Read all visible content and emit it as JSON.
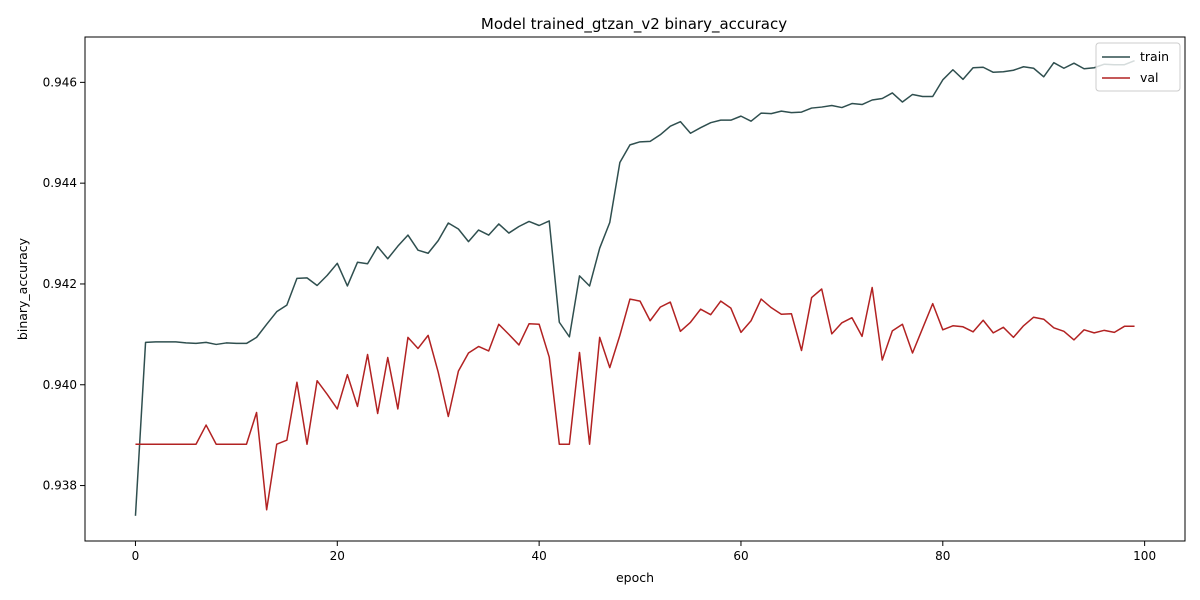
{
  "chart_data": {
    "type": "line",
    "title": "Model trained_gtzan_v2 binary_accuracy",
    "xlabel": "epoch",
    "ylabel": "binary_accuracy",
    "xlim": [
      -5,
      104
    ],
    "ylim": [
      0.9369,
      0.9469
    ],
    "xticks": [
      0,
      20,
      40,
      60,
      80,
      100
    ],
    "yticks": [
      0.938,
      0.94,
      0.942,
      0.944,
      0.946
    ],
    "xtick_labels": [
      "0",
      "20",
      "40",
      "60",
      "80",
      "100"
    ],
    "ytick_labels": [
      "0.938",
      "0.940",
      "0.942",
      "0.944",
      "0.946"
    ],
    "grid": false,
    "legend_position": "top-right",
    "series": [
      {
        "name": "train",
        "color": "#2f4f4f",
        "values": [
          0.9374,
          0.94084,
          0.94085,
          0.94085,
          0.94085,
          0.94083,
          0.94082,
          0.94084,
          0.9408,
          0.94083,
          0.94082,
          0.94082,
          0.94094,
          0.9412,
          0.94145,
          0.94158,
          0.94211,
          0.94212,
          0.94197,
          0.94217,
          0.94241,
          0.94196,
          0.94243,
          0.9424,
          0.94274,
          0.9425,
          0.94275,
          0.94297,
          0.94267,
          0.94261,
          0.94286,
          0.94321,
          0.94309,
          0.94284,
          0.94307,
          0.94297,
          0.94319,
          0.94301,
          0.94314,
          0.94324,
          0.94316,
          0.94325,
          0.94124,
          0.94095,
          0.94216,
          0.94196,
          0.94271,
          0.94322,
          0.94441,
          0.94476,
          0.94482,
          0.94483,
          0.94496,
          0.94513,
          0.94522,
          0.94499,
          0.9451,
          0.9452,
          0.94525,
          0.94525,
          0.94533,
          0.94523,
          0.94539,
          0.94538,
          0.94543,
          0.9454,
          0.94541,
          0.94549,
          0.94551,
          0.94554,
          0.9455,
          0.94558,
          0.94556,
          0.94565,
          0.94568,
          0.94579,
          0.94561,
          0.94576,
          0.94572,
          0.94572,
          0.94605,
          0.94625,
          0.94606,
          0.94629,
          0.9463,
          0.9462,
          0.94621,
          0.94624,
          0.94631,
          0.94628,
          0.94611,
          0.94639,
          0.94628,
          0.94638,
          0.94627,
          0.94629,
          0.94636,
          0.94635,
          0.94635,
          0.94643
        ]
      },
      {
        "name": "val",
        "color": "#b22222",
        "values": [
          0.93882,
          0.93882,
          0.93882,
          0.93882,
          0.93882,
          0.93882,
          0.93882,
          0.9392,
          0.93882,
          0.93882,
          0.93882,
          0.93882,
          0.93945,
          0.93752,
          0.93882,
          0.9389,
          0.94005,
          0.93882,
          0.94008,
          0.93981,
          0.93952,
          0.9402,
          0.93957,
          0.9406,
          0.93943,
          0.94054,
          0.93952,
          0.94094,
          0.94072,
          0.94098,
          0.94025,
          0.93937,
          0.94027,
          0.94063,
          0.94076,
          0.94067,
          0.9412,
          0.941,
          0.94079,
          0.94121,
          0.9412,
          0.94055,
          0.93882,
          0.93882,
          0.94064,
          0.93882,
          0.94094,
          0.94034,
          0.94098,
          0.9417,
          0.94166,
          0.94127,
          0.94154,
          0.94164,
          0.94106,
          0.94124,
          0.9415,
          0.94139,
          0.94166,
          0.94152,
          0.94104,
          0.94127,
          0.9417,
          0.94153,
          0.9414,
          0.94141,
          0.94068,
          0.94173,
          0.9419,
          0.94101,
          0.94123,
          0.94133,
          0.94096,
          0.94193,
          0.94049,
          0.94107,
          0.9412,
          0.94063,
          0.94112,
          0.94161,
          0.94109,
          0.94117,
          0.94115,
          0.94105,
          0.94128,
          0.94103,
          0.94114,
          0.94094,
          0.94117,
          0.94134,
          0.9413,
          0.94113,
          0.94106,
          0.94089,
          0.94109,
          0.94103,
          0.94108,
          0.94104,
          0.94116,
          0.94116
        ]
      }
    ]
  }
}
